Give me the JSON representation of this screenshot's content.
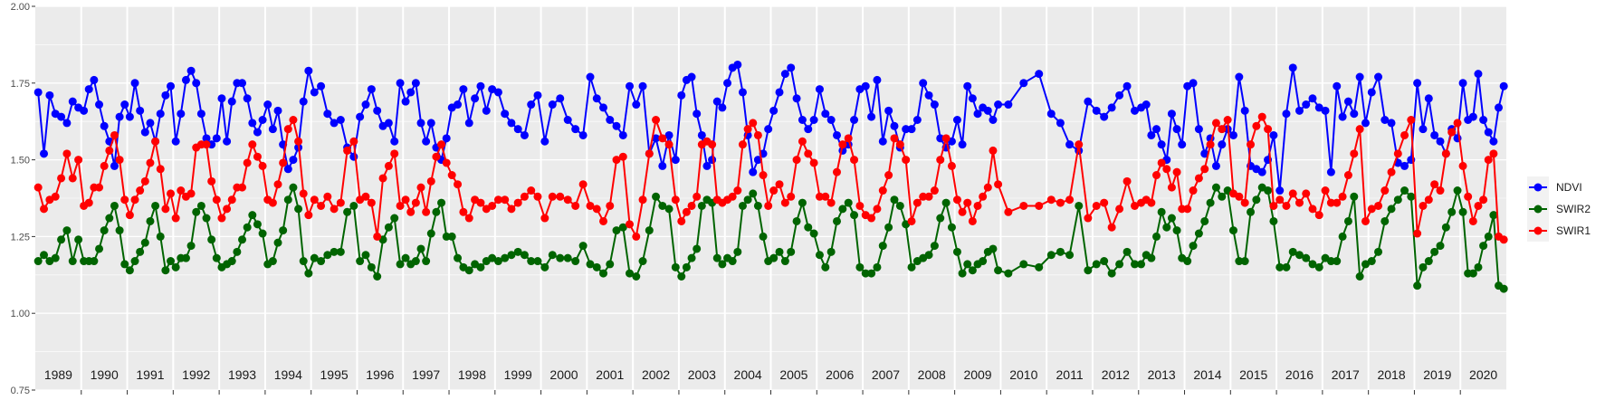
{
  "chart_data": {
    "type": "line",
    "title": "",
    "xlabel": "",
    "ylabel": "",
    "ylim": [
      0.75,
      2.0
    ],
    "yticks": [
      "0.75",
      "1.00",
      "1.25",
      "1.50",
      "1.75",
      "2.00"
    ],
    "grid": true,
    "legend_position": "right",
    "series_names": [
      "NDVI",
      "SWIR2",
      "SWIR1"
    ],
    "colors": {
      "NDVI": "#0000ff",
      "SWIR2": "#006400",
      "SWIR1": "#ff0000"
    },
    "note": "observations within each year are evenly spaced in time",
    "years": [
      {
        "year": "1989",
        "NDVI": [
          1.72,
          1.52,
          1.71,
          1.65,
          1.64,
          1.62,
          1.69,
          1.67
        ],
        "SWIR2": [
          1.17,
          1.19,
          1.17,
          1.18,
          1.24,
          1.27,
          1.17,
          1.24
        ],
        "SWIR1": [
          1.41,
          1.34,
          1.37,
          1.38,
          1.44,
          1.52,
          1.44,
          1.5
        ]
      },
      {
        "year": "1990",
        "NDVI": [
          1.66,
          1.73,
          1.76,
          1.68,
          1.61,
          1.56,
          1.48,
          1.64,
          1.68
        ],
        "SWIR2": [
          1.17,
          1.17,
          1.17,
          1.21,
          1.27,
          1.31,
          1.35,
          1.27,
          1.16
        ],
        "SWIR1": [
          1.35,
          1.36,
          1.41,
          1.41,
          1.48,
          1.53,
          1.58,
          1.5,
          1.37
        ]
      },
      {
        "year": "1991",
        "NDVI": [
          1.64,
          1.75,
          1.66,
          1.59,
          1.62,
          1.56,
          1.65,
          1.71,
          1.74
        ],
        "SWIR2": [
          1.14,
          1.17,
          1.2,
          1.23,
          1.3,
          1.35,
          1.25,
          1.14,
          1.17
        ],
        "SWIR1": [
          1.32,
          1.37,
          1.4,
          1.43,
          1.49,
          1.56,
          1.47,
          1.34,
          1.39
        ]
      },
      {
        "year": "1992",
        "NDVI": [
          1.56,
          1.65,
          1.76,
          1.79,
          1.75,
          1.65,
          1.57,
          1.55,
          1.57
        ],
        "SWIR2": [
          1.15,
          1.18,
          1.18,
          1.22,
          1.33,
          1.35,
          1.31,
          1.24,
          1.18
        ],
        "SWIR1": [
          1.31,
          1.4,
          1.38,
          1.39,
          1.54,
          1.55,
          1.55,
          1.43,
          1.37
        ]
      },
      {
        "year": "1993",
        "NDVI": [
          1.7,
          1.56,
          1.69,
          1.75,
          1.75,
          1.7,
          1.62,
          1.59,
          1.63
        ],
        "SWIR2": [
          1.15,
          1.16,
          1.17,
          1.2,
          1.24,
          1.28,
          1.32,
          1.29,
          1.26
        ],
        "SWIR1": [
          1.31,
          1.34,
          1.37,
          1.41,
          1.41,
          1.49,
          1.55,
          1.51,
          1.48
        ]
      },
      {
        "year": "1994",
        "NDVI": [
          1.68,
          1.6,
          1.66,
          1.55,
          1.47,
          1.5,
          1.54,
          1.69,
          1.79
        ],
        "SWIR2": [
          1.16,
          1.17,
          1.23,
          1.27,
          1.37,
          1.41,
          1.34,
          1.17,
          1.13
        ],
        "SWIR1": [
          1.37,
          1.36,
          1.42,
          1.49,
          1.6,
          1.63,
          1.56,
          1.39,
          1.32
        ]
      },
      {
        "year": "1995",
        "NDVI": [
          1.72,
          1.74,
          1.65,
          1.62,
          1.63,
          1.54,
          1.51
        ],
        "SWIR2": [
          1.18,
          1.17,
          1.19,
          1.2,
          1.2,
          1.33,
          1.35
        ],
        "SWIR1": [
          1.37,
          1.35,
          1.38,
          1.34,
          1.36,
          1.53,
          1.56
        ]
      },
      {
        "year": "1996",
        "NDVI": [
          1.64,
          1.68,
          1.73,
          1.66,
          1.61,
          1.62,
          1.56,
          1.75
        ],
        "SWIR2": [
          1.17,
          1.19,
          1.15,
          1.12,
          1.24,
          1.28,
          1.31,
          1.16
        ],
        "SWIR1": [
          1.37,
          1.38,
          1.36,
          1.25,
          1.44,
          1.48,
          1.52,
          1.35
        ]
      },
      {
        "year": "1997",
        "NDVI": [
          1.69,
          1.72,
          1.75,
          1.62,
          1.56,
          1.62,
          1.54,
          1.5,
          1.57
        ],
        "SWIR2": [
          1.18,
          1.16,
          1.17,
          1.21,
          1.17,
          1.26,
          1.33,
          1.36,
          1.25
        ],
        "SWIR1": [
          1.37,
          1.33,
          1.36,
          1.41,
          1.33,
          1.43,
          1.51,
          1.55,
          1.49
        ]
      },
      {
        "year": "1998",
        "NDVI": [
          1.67,
          1.68,
          1.73,
          1.62,
          1.7,
          1.74,
          1.66,
          1.73
        ],
        "SWIR2": [
          1.25,
          1.18,
          1.15,
          1.14,
          1.16,
          1.15,
          1.17,
          1.18
        ],
        "SWIR1": [
          1.45,
          1.42,
          1.33,
          1.31,
          1.37,
          1.36,
          1.34,
          1.35
        ]
      },
      {
        "year": "1999",
        "NDVI": [
          1.72,
          1.65,
          1.62,
          1.6,
          1.58,
          1.68,
          1.71
        ],
        "SWIR2": [
          1.17,
          1.18,
          1.19,
          1.2,
          1.19,
          1.17,
          1.17
        ],
        "SWIR1": [
          1.37,
          1.37,
          1.34,
          1.36,
          1.38,
          1.4,
          1.38
        ]
      },
      {
        "year": "2000",
        "NDVI": [
          1.56,
          1.68,
          1.7,
          1.63,
          1.6,
          1.58
        ],
        "SWIR2": [
          1.15,
          1.19,
          1.18,
          1.18,
          1.17,
          1.22
        ],
        "SWIR1": [
          1.31,
          1.38,
          1.38,
          1.37,
          1.35,
          1.42
        ]
      },
      {
        "year": "2001",
        "NDVI": [
          1.77,
          1.7,
          1.67,
          1.63,
          1.61,
          1.58,
          1.74
        ],
        "SWIR2": [
          1.16,
          1.15,
          1.13,
          1.16,
          1.27,
          1.28,
          1.13
        ],
        "SWIR1": [
          1.35,
          1.34,
          1.3,
          1.35,
          1.5,
          1.51,
          1.29
        ]
      },
      {
        "year": "2002",
        "NDVI": [
          1.68,
          1.74,
          1.52,
          1.57,
          1.48,
          1.58,
          1.5
        ],
        "SWIR2": [
          1.12,
          1.17,
          1.27,
          1.38,
          1.35,
          1.34,
          1.15
        ],
        "SWIR1": [
          1.25,
          1.37,
          1.52,
          1.63,
          1.57,
          1.55,
          1.37
        ]
      },
      {
        "year": "2003",
        "NDVI": [
          1.71,
          1.76,
          1.77,
          1.65,
          1.58,
          1.48,
          1.5,
          1.69,
          1.67
        ],
        "SWIR2": [
          1.12,
          1.15,
          1.18,
          1.21,
          1.35,
          1.37,
          1.36,
          1.18,
          1.16
        ],
        "SWIR1": [
          1.3,
          1.33,
          1.35,
          1.38,
          1.55,
          1.56,
          1.55,
          1.37,
          1.36
        ]
      },
      {
        "year": "2004",
        "NDVI": [
          1.75,
          1.8,
          1.81,
          1.72,
          1.58,
          1.46,
          1.5,
          1.52,
          1.6
        ],
        "SWIR2": [
          1.18,
          1.17,
          1.2,
          1.35,
          1.37,
          1.39,
          1.35,
          1.25,
          1.17
        ],
        "SWIR1": [
          1.37,
          1.38,
          1.4,
          1.55,
          1.6,
          1.62,
          1.58,
          1.45,
          1.35
        ]
      },
      {
        "year": "2005",
        "NDVI": [
          1.66,
          1.72,
          1.78,
          1.8,
          1.7,
          1.63,
          1.6,
          1.63
        ],
        "SWIR2": [
          1.18,
          1.2,
          1.17,
          1.2,
          1.3,
          1.36,
          1.28,
          1.26
        ],
        "SWIR1": [
          1.4,
          1.42,
          1.36,
          1.38,
          1.5,
          1.56,
          1.52,
          1.49
        ]
      },
      {
        "year": "2006",
        "NDVI": [
          1.73,
          1.65,
          1.63,
          1.58,
          1.53,
          1.55,
          1.63,
          1.73
        ],
        "SWIR2": [
          1.19,
          1.15,
          1.2,
          1.3,
          1.34,
          1.36,
          1.32,
          1.15
        ],
        "SWIR1": [
          1.38,
          1.38,
          1.36,
          1.46,
          1.55,
          1.57,
          1.5,
          1.35
        ]
      },
      {
        "year": "2007",
        "NDVI": [
          1.74,
          1.64,
          1.76,
          1.56,
          1.66,
          1.61,
          1.54,
          1.6
        ],
        "SWIR2": [
          1.13,
          1.13,
          1.15,
          1.22,
          1.28,
          1.37,
          1.35,
          1.29
        ],
        "SWIR1": [
          1.32,
          1.31,
          1.34,
          1.4,
          1.45,
          1.57,
          1.55,
          1.5
        ]
      },
      {
        "year": "2008",
        "NDVI": [
          1.6,
          1.63,
          1.75,
          1.71,
          1.68,
          1.57,
          1.54,
          1.56
        ],
        "SWIR2": [
          1.15,
          1.17,
          1.18,
          1.19,
          1.22,
          1.31,
          1.36,
          1.28
        ],
        "SWIR1": [
          1.3,
          1.36,
          1.38,
          1.38,
          1.4,
          1.5,
          1.57,
          1.48
        ]
      },
      {
        "year": "2009",
        "NDVI": [
          1.63,
          1.55,
          1.74,
          1.7,
          1.65,
          1.67,
          1.66,
          1.63,
          1.68
        ],
        "SWIR2": [
          1.2,
          1.13,
          1.16,
          1.14,
          1.16,
          1.17,
          1.2,
          1.21,
          1.14
        ],
        "SWIR1": [
          1.37,
          1.33,
          1.36,
          1.3,
          1.35,
          1.38,
          1.41,
          1.53,
          1.42
        ]
      },
      {
        "year": "2010",
        "NDVI": [
          1.68,
          1.75,
          1.78
        ],
        "SWIR2": [
          1.13,
          1.16,
          1.15
        ],
        "SWIR1": [
          1.33,
          1.35,
          1.35
        ]
      },
      {
        "year": "2011",
        "NDVI": [
          1.65,
          1.62,
          1.55,
          1.53,
          1.69
        ],
        "SWIR2": [
          1.19,
          1.2,
          1.19,
          1.35,
          1.14
        ],
        "SWIR1": [
          1.37,
          1.36,
          1.37,
          1.55,
          1.31
        ]
      },
      {
        "year": "2012",
        "NDVI": [
          1.66,
          1.64,
          1.67,
          1.71,
          1.74,
          1.66
        ],
        "SWIR2": [
          1.16,
          1.17,
          1.13,
          1.16,
          1.2,
          1.16
        ],
        "SWIR1": [
          1.35,
          1.36,
          1.28,
          1.34,
          1.43,
          1.35
        ]
      },
      {
        "year": "2013",
        "NDVI": [
          1.67,
          1.68,
          1.58,
          1.6,
          1.55,
          1.5,
          1.65,
          1.6,
          1.55
        ],
        "SWIR2": [
          1.16,
          1.19,
          1.18,
          1.25,
          1.33,
          1.28,
          1.31,
          1.27,
          1.18
        ],
        "SWIR1": [
          1.36,
          1.37,
          1.36,
          1.45,
          1.49,
          1.47,
          1.41,
          1.46,
          1.34
        ]
      },
      {
        "year": "2014",
        "NDVI": [
          1.74,
          1.75,
          1.6,
          1.52,
          1.57,
          1.48,
          1.55,
          1.6
        ],
        "SWIR2": [
          1.17,
          1.22,
          1.26,
          1.3,
          1.36,
          1.41,
          1.38,
          1.4
        ],
        "SWIR1": [
          1.34,
          1.4,
          1.44,
          1.47,
          1.55,
          1.62,
          1.6,
          1.63
        ]
      },
      {
        "year": "2015",
        "NDVI": [
          1.58,
          1.77,
          1.66,
          1.48,
          1.47,
          1.46,
          1.5,
          1.58
        ],
        "SWIR2": [
          1.27,
          1.17,
          1.17,
          1.33,
          1.37,
          1.41,
          1.4,
          1.3
        ],
        "SWIR1": [
          1.39,
          1.38,
          1.36,
          1.55,
          1.61,
          1.64,
          1.6,
          1.35
        ]
      },
      {
        "year": "2016",
        "NDVI": [
          1.4,
          1.65,
          1.8,
          1.66,
          1.68,
          1.7,
          1.67
        ],
        "SWIR2": [
          1.15,
          1.15,
          1.2,
          1.19,
          1.18,
          1.16,
          1.15
        ],
        "SWIR1": [
          1.37,
          1.35,
          1.39,
          1.36,
          1.39,
          1.34,
          1.32
        ]
      },
      {
        "year": "2017",
        "NDVI": [
          1.66,
          1.46,
          1.74,
          1.64,
          1.69,
          1.65,
          1.77,
          1.62
        ],
        "SWIR2": [
          1.18,
          1.17,
          1.17,
          1.25,
          1.3,
          1.38,
          1.12,
          1.16
        ],
        "SWIR1": [
          1.4,
          1.36,
          1.36,
          1.38,
          1.45,
          1.52,
          1.6,
          1.3
        ]
      },
      {
        "year": "2018",
        "NDVI": [
          1.72,
          1.77,
          1.63,
          1.62,
          1.49,
          1.48,
          1.5
        ],
        "SWIR2": [
          1.17,
          1.2,
          1.3,
          1.34,
          1.37,
          1.4,
          1.38
        ],
        "SWIR1": [
          1.34,
          1.35,
          1.4,
          1.46,
          1.52,
          1.58,
          1.63
        ]
      },
      {
        "year": "2019",
        "NDVI": [
          1.75,
          1.6,
          1.7,
          1.58,
          1.56,
          1.52,
          1.6,
          1.57
        ],
        "SWIR2": [
          1.09,
          1.15,
          1.17,
          1.2,
          1.22,
          1.28,
          1.33,
          1.4
        ],
        "SWIR1": [
          1.26,
          1.35,
          1.37,
          1.42,
          1.4,
          1.52,
          1.59,
          1.62
        ]
      },
      {
        "year": "2020",
        "NDVI": [
          1.75,
          1.63,
          1.64,
          1.78,
          1.63,
          1.59,
          1.56,
          1.67,
          1.74
        ],
        "SWIR2": [
          1.33,
          1.13,
          1.13,
          1.15,
          1.22,
          1.25,
          1.32,
          1.09,
          1.08
        ],
        "SWIR1": [
          1.48,
          1.38,
          1.3,
          1.35,
          1.37,
          1.5,
          1.52,
          1.25,
          1.24
        ]
      }
    ]
  }
}
